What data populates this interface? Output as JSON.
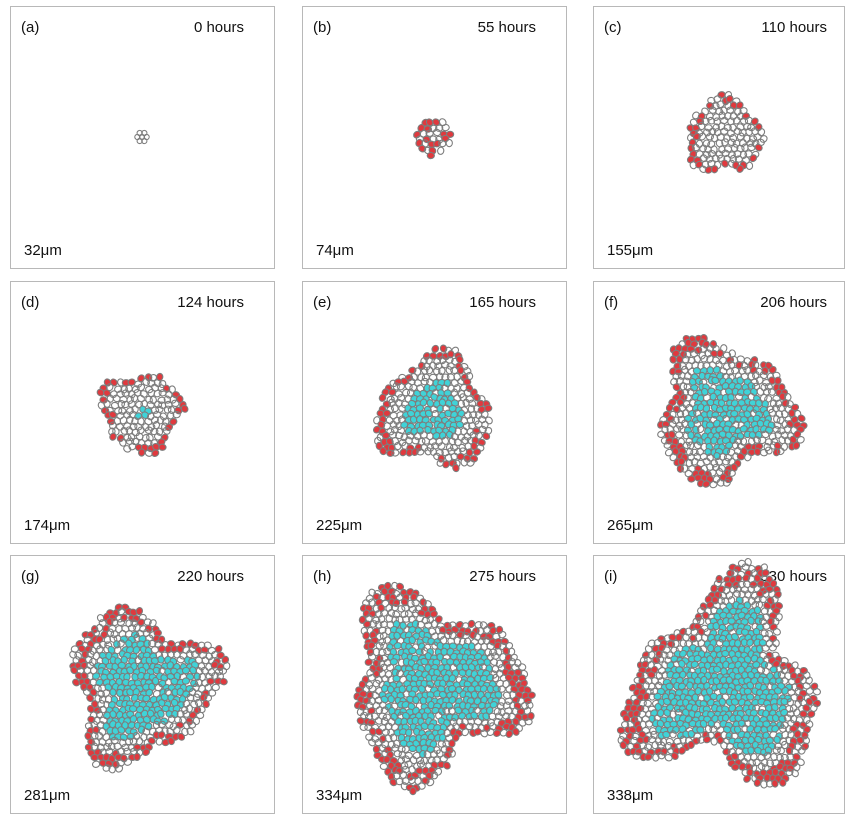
{
  "panels": [
    {
      "label": "(a)",
      "time": "0 hours",
      "scale": "32μm"
    },
    {
      "label": "(b)",
      "time": "55 hours",
      "scale": "74μm"
    },
    {
      "label": "(c)",
      "time": "110 hours",
      "scale": "155μm"
    },
    {
      "label": "(d)",
      "time": "124 hours",
      "scale": "174μm"
    },
    {
      "label": "(e)",
      "time": "165 hours",
      "scale": "225μm"
    },
    {
      "label": "(f)",
      "time": "206 hours",
      "scale": "265μm"
    },
    {
      "label": "(g)",
      "time": "220 hours",
      "scale": "281μm"
    },
    {
      "label": "(h)",
      "time": "275 hours",
      "scale": "334μm"
    },
    {
      "label": "(i)",
      "time": "330 hours",
      "scale": "338μm"
    }
  ]
}
